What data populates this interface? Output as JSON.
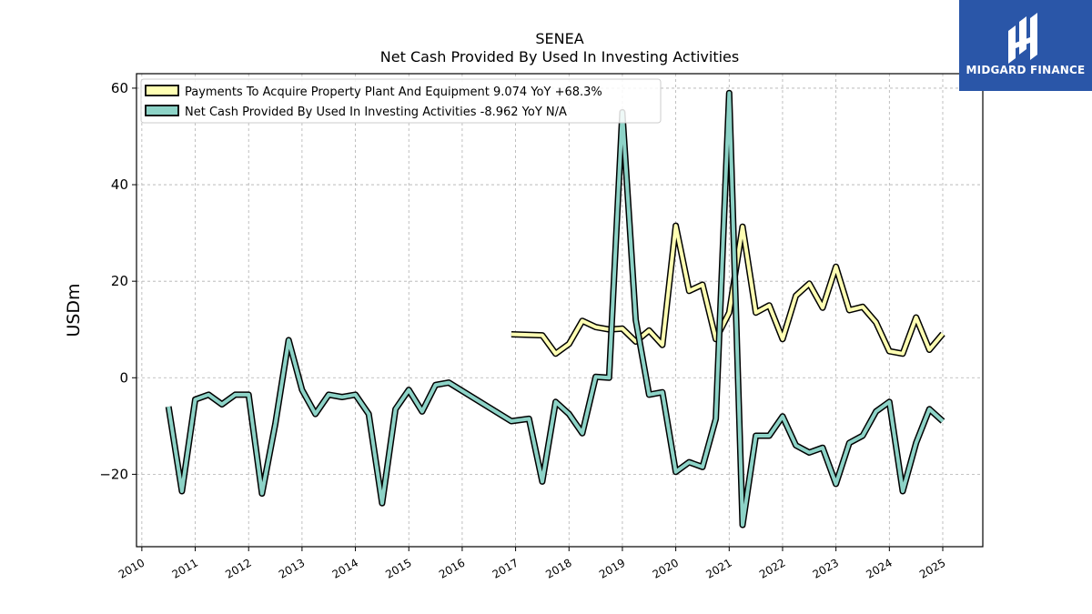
{
  "brand": {
    "name": "MIDGARD FINANCE",
    "bg_color": "#2a56a8"
  },
  "chart_data": {
    "type": "line",
    "title": "SENEA",
    "subtitle": "Net Cash Provided By Used In Investing Activities",
    "ylabel": "USDm",
    "xlabel": "",
    "ylim": [
      -35,
      63
    ],
    "xlim": [
      2009.9,
      2025.75
    ],
    "yticks": [
      -20,
      0,
      20,
      40,
      60
    ],
    "yticklabels": [
      "−20",
      "0",
      "20",
      "40",
      "60"
    ],
    "xticks": [
      2010,
      2011,
      2012,
      2013,
      2014,
      2015,
      2016,
      2017,
      2018,
      2019,
      2020,
      2021,
      2022,
      2023,
      2024,
      2025
    ],
    "xticklabels": [
      "2010",
      "2011",
      "2012",
      "2013",
      "2014",
      "2015",
      "2016",
      "2017",
      "2018",
      "2019",
      "2020",
      "2021",
      "2022",
      "2023",
      "2024",
      "2025"
    ],
    "grid": true,
    "legend_position": "upper-left",
    "series": [
      {
        "name": "Payments To Acquire Property Plant And Equipment  9.074 YoY +68.3%",
        "color": "#ffffb3",
        "x": [
          2016.92,
          2017.5,
          2017.75,
          2018.0,
          2018.25,
          2018.5,
          2018.75,
          2019.0,
          2019.25,
          2019.5,
          2019.75,
          2020.0,
          2020.25,
          2020.5,
          2020.75,
          2021.0,
          2021.25,
          2021.5,
          2021.75,
          2022.0,
          2022.25,
          2022.5,
          2022.75,
          2023.0,
          2023.25,
          2023.5,
          2023.75,
          2024.0,
          2024.25,
          2024.5,
          2024.75,
          2025.0
        ],
        "y": [
          9.0,
          8.8,
          5.0,
          7.0,
          11.8,
          10.5,
          10.0,
          10.2,
          7.5,
          9.8,
          6.8,
          31.5,
          18.0,
          19.3,
          8.0,
          13.5,
          31.3,
          13.5,
          15.0,
          8.0,
          17.0,
          19.5,
          14.5,
          23.0,
          14.0,
          14.7,
          11.5,
          5.5,
          5.0,
          12.5,
          5.8,
          9.1
        ]
      },
      {
        "name": "Net Cash Provided By Used In Investing Activities  -8.962 YoY N/A",
        "color": "#8dd3c7",
        "x": [
          2010.5,
          2010.75,
          2011.0,
          2011.25,
          2011.5,
          2011.75,
          2012.0,
          2012.25,
          2012.5,
          2012.75,
          2013.0,
          2013.25,
          2013.5,
          2013.75,
          2014.0,
          2014.25,
          2014.5,
          2014.75,
          2015.0,
          2015.25,
          2015.5,
          2015.75,
          2016.92,
          2017.25,
          2017.5,
          2017.75,
          2018.0,
          2018.25,
          2018.5,
          2018.75,
          2019.0,
          2019.25,
          2019.5,
          2019.75,
          2020.0,
          2020.25,
          2020.5,
          2020.75,
          2021.0,
          2021.25,
          2021.5,
          2021.75,
          2022.0,
          2022.25,
          2022.5,
          2022.75,
          2023.0,
          2023.25,
          2023.5,
          2023.75,
          2024.0,
          2024.25,
          2024.5,
          2024.75,
          2025.0
        ],
        "y": [
          -6.0,
          -23.5,
          -4.5,
          -3.5,
          -5.5,
          -3.5,
          -3.5,
          -24.0,
          -9.5,
          7.8,
          -2.5,
          -7.5,
          -3.5,
          -4.0,
          -3.5,
          -7.5,
          -26.0,
          -6.5,
          -2.5,
          -7.0,
          -1.5,
          -1.0,
          -9.0,
          -8.5,
          -21.5,
          -5.0,
          -7.5,
          -11.5,
          0.2,
          0.0,
          55.0,
          12.0,
          -3.5,
          -3.0,
          -19.5,
          -17.5,
          -18.5,
          -8.5,
          59.0,
          -30.5,
          -12.0,
          -12.0,
          -8.0,
          -14.0,
          -15.5,
          -14.5,
          -22.0,
          -13.5,
          -12.0,
          -7.0,
          -5.0,
          -23.5,
          -13.5,
          -6.5,
          -9.0
        ]
      }
    ]
  }
}
